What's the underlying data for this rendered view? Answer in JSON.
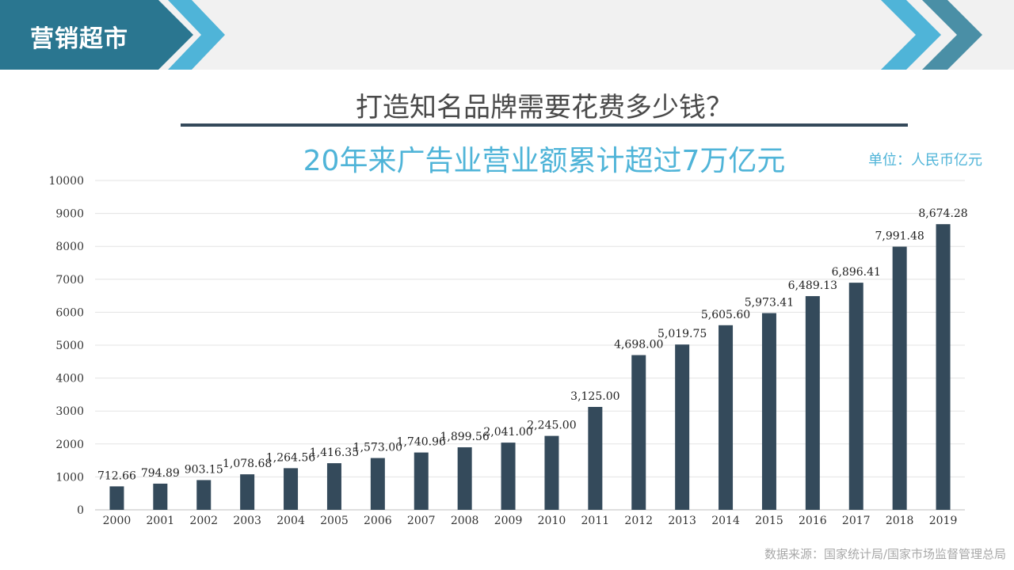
{
  "header": {
    "brand": "营销超市",
    "title": "打造知名品牌需要花费多少钱？",
    "subtitle": "20年来广告业营业额累计超过7万亿元",
    "unit": "单位：人民币亿元"
  },
  "footer": {
    "source": "数据来源：国家统计局/国家市场监督管理总局"
  },
  "colors": {
    "bar": "#344a5b",
    "accent": "#4fb4d8",
    "header_dark": "#2a7690"
  },
  "chart_data": {
    "type": "bar",
    "title": "20年来广告业营业额累计超过7万亿元",
    "xlabel": "",
    "ylabel": "",
    "ylim": [
      0,
      10000
    ],
    "yticks": [
      0,
      1000,
      2000,
      3000,
      4000,
      5000,
      6000,
      7000,
      8000,
      9000,
      10000
    ],
    "grid": true,
    "categories": [
      "2000",
      "2001",
      "2002",
      "2003",
      "2004",
      "2005",
      "2006",
      "2007",
      "2008",
      "2009",
      "2010",
      "2011",
      "2012",
      "2013",
      "2014",
      "2015",
      "2016",
      "2017",
      "2018",
      "2019"
    ],
    "values": [
      712.66,
      794.89,
      903.15,
      1078.68,
      1264.56,
      1416.35,
      1573.0,
      1740.96,
      1899.56,
      2041.0,
      2245.0,
      3125.0,
      4698.0,
      5019.75,
      5605.6,
      5973.41,
      6489.13,
      6896.41,
      7991.48,
      8674.28
    ],
    "labels": [
      "712.66",
      "794.89",
      "903.15",
      "1,078.68",
      "1,264.56",
      "1,416.35",
      "1,573.00",
      "1,740.96",
      "1,899.56",
      "2,041.00",
      "2,245.00",
      "3,125.00",
      "4,698.00",
      "5,019.75",
      "5,605.60",
      "5,973.41",
      "6,489.13",
      "6,896.41",
      "7,991.48",
      "8,674.28"
    ]
  }
}
